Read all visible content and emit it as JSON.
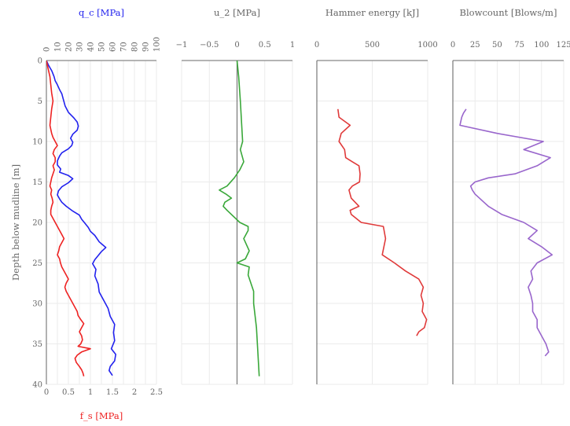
{
  "chart_data": [
    {
      "type": "line",
      "ylabel": "Depth below mudline [m]",
      "ylim": [
        40,
        0
      ],
      "yticks": [
        "0",
        "5",
        "10",
        "15",
        "20",
        "25",
        "30",
        "35",
        "40"
      ],
      "xlabel_top": "q_c [MPa]",
      "xlim_top": [
        0,
        100
      ],
      "xticks_top": [
        "0",
        "10",
        "20",
        "30",
        "40",
        "50",
        "60",
        "70",
        "80",
        "90",
        "100"
      ],
      "xlabel_bottom": "f_s [MPa]",
      "xlim_bottom": [
        0,
        2.5
      ],
      "xticks_bottom": [
        "0",
        "0.5",
        "1",
        "1.5",
        "2",
        "2.5"
      ],
      "grid": true,
      "series": [
        {
          "axis": "top",
          "color": "#2222ee",
          "x": [
            0,
            2,
            5,
            7,
            8,
            10,
            12,
            14,
            15,
            16,
            17,
            20,
            25,
            28,
            29,
            28,
            24,
            22,
            24,
            23,
            20,
            14,
            12,
            10,
            10,
            13,
            12,
            20,
            24,
            20,
            14,
            11,
            10,
            12,
            14,
            18,
            24,
            30,
            32,
            35,
            38,
            40,
            44,
            48,
            54,
            50,
            47,
            44,
            42,
            45,
            44,
            47,
            48,
            52,
            56,
            58,
            62,
            61,
            62,
            59,
            63,
            62,
            58,
            57,
            60
          ],
          "y": [
            0,
            0.6,
            1.3,
            2,
            2.5,
            3,
            3.6,
            4.1,
            4.6,
            5.1,
            5.6,
            6.4,
            7.1,
            7.6,
            8.1,
            8.6,
            9.1,
            9.6,
            10.1,
            10.5,
            10.9,
            11.4,
            11.8,
            12.4,
            12.9,
            13.4,
            13.8,
            14.2,
            14.6,
            15.1,
            15.6,
            16.1,
            16.6,
            17.1,
            17.5,
            18.0,
            18.6,
            19.1,
            19.6,
            20.1,
            20.6,
            21.1,
            21.6,
            22.4,
            23.1,
            23.6,
            24.1,
            24.6,
            25.1,
            25.8,
            26.6,
            27.6,
            28.6,
            29.6,
            30.6,
            31.6,
            32.6,
            33.6,
            34.6,
            35.6,
            36.3,
            37.1,
            37.8,
            38.3,
            38.9
          ]
        },
        {
          "axis": "bottom",
          "color": "#ee2222",
          "x": [
            0,
            0.04,
            0.08,
            0.1,
            0.12,
            0.15,
            0.12,
            0.1,
            0.08,
            0.1,
            0.12,
            0.15,
            0.2,
            0.25,
            0.18,
            0.15,
            0.2,
            0.2,
            0.15,
            0.18,
            0.15,
            0.12,
            0.1,
            0.08,
            0.12,
            0.1,
            0.13,
            0.15,
            0.12,
            0.1,
            0.1,
            0.15,
            0.2,
            0.25,
            0.3,
            0.35,
            0.4,
            0.35,
            0.3,
            0.28,
            0.25,
            0.3,
            0.32,
            0.35,
            0.4,
            0.45,
            0.5,
            0.45,
            0.42,
            0.45,
            0.5,
            0.55,
            0.6,
            0.65,
            0.7,
            0.72,
            0.78,
            0.85,
            0.8,
            0.75,
            0.8,
            0.82,
            0.78,
            0.72,
            1.0,
            0.8,
            0.7,
            0.65,
            0.68,
            0.75,
            0.8,
            0.83,
            0.85
          ],
          "y": [
            0,
            1,
            2,
            3,
            4,
            5,
            6,
            7,
            8,
            8.5,
            9,
            9.5,
            10,
            10.5,
            11,
            11.5,
            12,
            12.5,
            13,
            13.5,
            14,
            14.5,
            15,
            15.5,
            16,
            16.5,
            17,
            17.5,
            18,
            18.5,
            19,
            19.5,
            20,
            20.5,
            21,
            21.5,
            22,
            22.5,
            23,
            23.5,
            24,
            24.5,
            25,
            25.5,
            26,
            26.5,
            27,
            27.5,
            28,
            28.5,
            29,
            29.5,
            30,
            30.5,
            31,
            31.5,
            32,
            32.5,
            33,
            33.5,
            34,
            34.5,
            35,
            35.3,
            35.6,
            36.0,
            36.4,
            36.8,
            37.3,
            37.8,
            38.2,
            38.6,
            39.0
          ]
        }
      ]
    },
    {
      "type": "line",
      "xlabel_top": "u_2 [MPa]",
      "xlim": [
        -1,
        1
      ],
      "xticks": [
        "−1",
        "−0.5",
        "0",
        "0.5",
        "1"
      ],
      "ylim": [
        40,
        0
      ],
      "grid": true,
      "series": [
        {
          "color": "#3aa83a",
          "x": [
            0,
            0.03,
            0.06,
            0.1,
            0.06,
            0.12,
            0.05,
            -0.05,
            -0.18,
            -0.32,
            -0.2,
            -0.1,
            -0.22,
            -0.25,
            -0.18,
            0.05,
            0.2,
            0.2,
            0.12,
            0.22,
            0.15,
            0.0,
            0.22,
            0.2,
            0.25,
            0.3,
            0.3,
            0.35,
            0.4
          ],
          "y": [
            0,
            2,
            5,
            10,
            11,
            12.5,
            13.5,
            14.5,
            15.5,
            16,
            16.5,
            17,
            17.5,
            18,
            18.5,
            20,
            20.5,
            21,
            22,
            23.5,
            24.5,
            25,
            25.5,
            26.5,
            27.5,
            28.5,
            30,
            33,
            39
          ]
        }
      ]
    },
    {
      "type": "line",
      "xlabel_top": "Hammer energy [kJ]",
      "xlim": [
        0,
        1000
      ],
      "xticks": [
        "0",
        "500",
        "1000"
      ],
      "ylim": [
        40,
        0
      ],
      "grid": true,
      "series": [
        {
          "color": "#e03a3a",
          "x": [
            190,
            200,
            300,
            220,
            200,
            250,
            260,
            320,
            380,
            390,
            385,
            320,
            290,
            310,
            380,
            300,
            310,
            400,
            600,
            620,
            590,
            700,
            800,
            920,
            960,
            940,
            960,
            950,
            970,
            990,
            970,
            920,
            900
          ],
          "y": [
            6,
            7,
            8,
            9,
            10,
            11,
            12,
            12.5,
            13,
            14,
            15,
            15.5,
            16,
            17,
            18,
            18.5,
            19,
            20,
            20.5,
            22,
            24,
            25,
            26,
            27,
            28,
            29,
            30,
            31,
            31.5,
            32,
            33,
            33.5,
            34
          ]
        }
      ]
    },
    {
      "type": "line",
      "xlabel_top": "Blowcount [Blows/m]",
      "xlim": [
        0,
        125
      ],
      "xticks": [
        "0",
        "25",
        "50",
        "75",
        "100",
        "125"
      ],
      "ylim": [
        40,
        0
      ],
      "grid": true,
      "series": [
        {
          "color": "#9966cc",
          "x": [
            15,
            12,
            10,
            8,
            50,
            102,
            80,
            110,
            95,
            70,
            40,
            25,
            20,
            22,
            25,
            30,
            35,
            40,
            55,
            80,
            95,
            85,
            100,
            112,
            95,
            88,
            90,
            85,
            88,
            90,
            90,
            95,
            95,
            100,
            105,
            108,
            104
          ],
          "y": [
            6,
            6.5,
            7,
            8,
            9,
            10,
            11,
            12,
            13,
            14,
            14.5,
            15,
            15.5,
            16,
            16.5,
            17,
            17.5,
            18,
            19,
            20,
            21,
            22,
            23,
            24,
            25,
            26,
            27,
            28,
            29,
            30,
            31,
            32,
            33,
            34,
            35,
            36,
            36.5
          ]
        }
      ]
    }
  ]
}
